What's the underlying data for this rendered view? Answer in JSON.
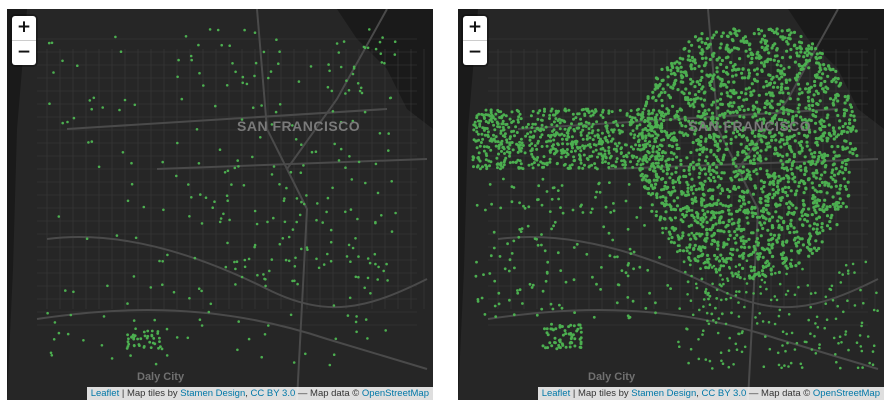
{
  "maps": [
    {
      "id": "left",
      "city_label": "SAN FRANCISCO",
      "secondary_label": "Daly City",
      "zoom_in": "+",
      "zoom_out": "−",
      "point_density": "sparse"
    },
    {
      "id": "right",
      "city_label": "SAN FRANCISCO",
      "secondary_label": "Daly City",
      "zoom_in": "+",
      "zoom_out": "−",
      "point_density": "dense"
    }
  ],
  "attribution": {
    "leaflet": "Leaflet",
    "sep1": " | Map tiles by ",
    "stamen": "Stamen Design",
    "sep2": ", ",
    "license": "CC BY 3.0",
    "sep3": " — Map data © ",
    "osm": "OpenStreetMap"
  },
  "colors": {
    "land": "#262626",
    "water": "#1a1a1a",
    "road": "#3a3a3a",
    "major_road": "#4a4a4a",
    "points": "#4caf50"
  }
}
